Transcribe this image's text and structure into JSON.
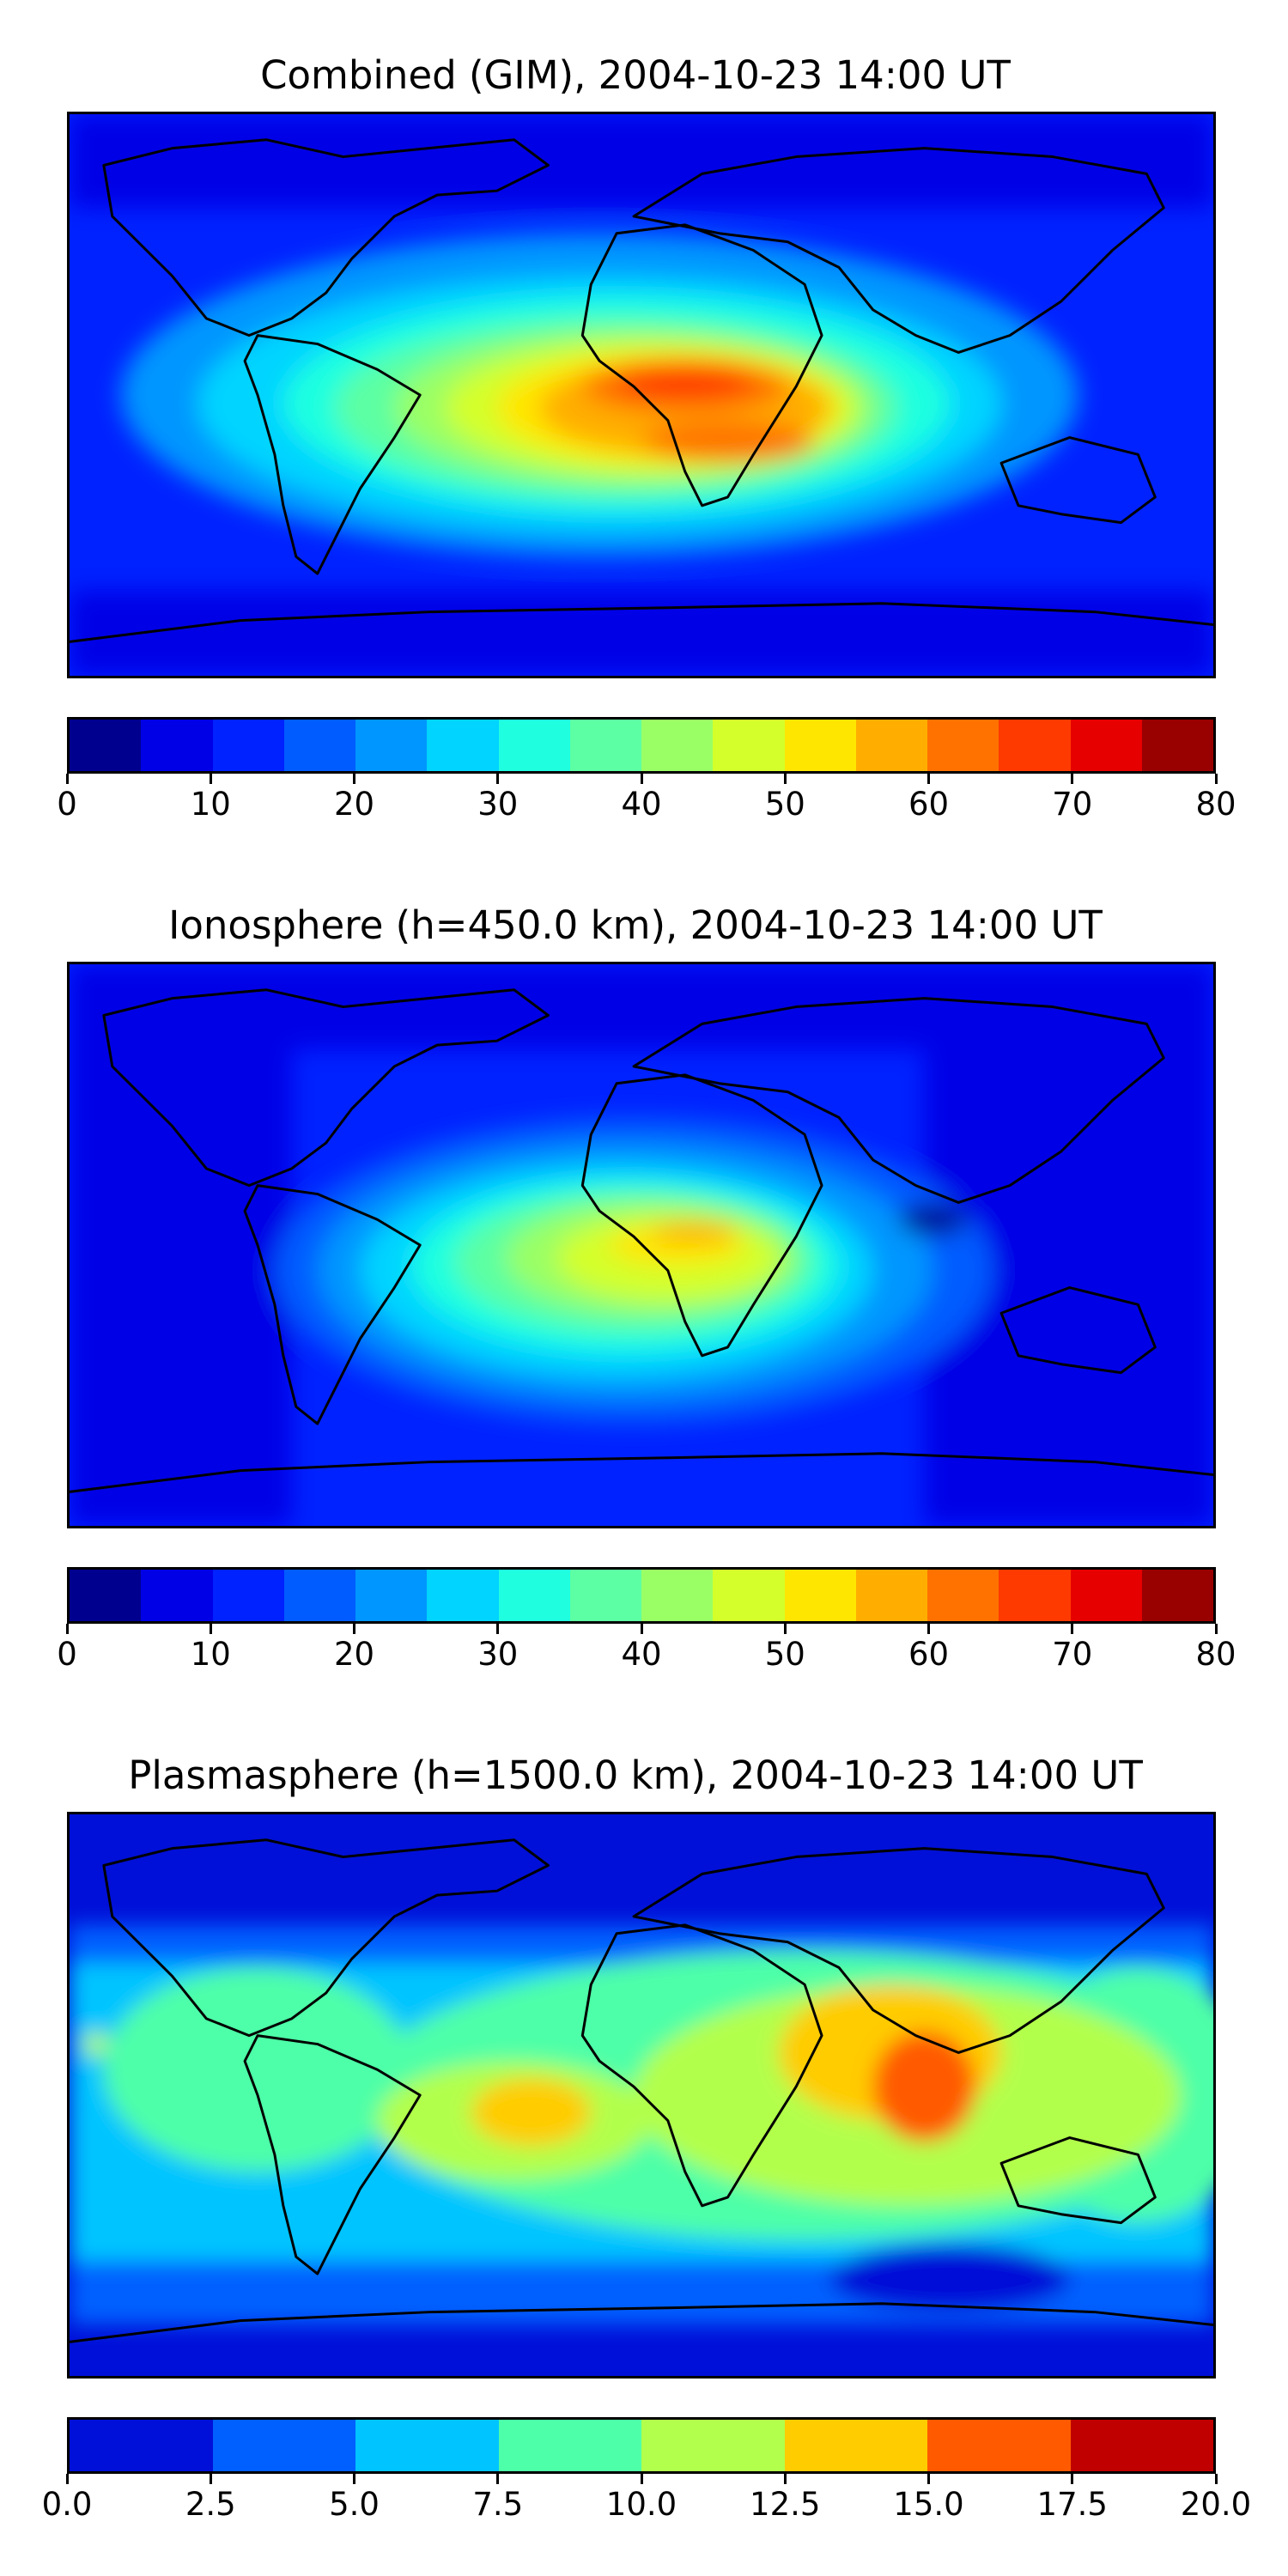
{
  "panels": [
    {
      "title": "Combined (GIM), 2004-10-23 14:00 UT",
      "colorbar": {
        "ticks": [
          "0",
          "10",
          "20",
          "30",
          "40",
          "50",
          "60",
          "70",
          "80"
        ],
        "colors": [
          "#00008f",
          "#0000e6",
          "#0022ff",
          "#005cff",
          "#0096ff",
          "#00d4ff",
          "#1fffe0",
          "#5cffa3",
          "#9aff65",
          "#d4ff2b",
          "#ffe600",
          "#ffae00",
          "#ff7200",
          "#ff3a00",
          "#e60000",
          "#990000"
        ]
      }
    },
    {
      "title": "Ionosphere  (h=450.0 km), 2004-10-23 14:00 UT",
      "colorbar": {
        "ticks": [
          "0",
          "10",
          "20",
          "30",
          "40",
          "50",
          "60",
          "70",
          "80"
        ],
        "colors": [
          "#00008f",
          "#0000e6",
          "#0022ff",
          "#005cff",
          "#0096ff",
          "#00d4ff",
          "#1fffe0",
          "#5cffa3",
          "#9aff65",
          "#d4ff2b",
          "#ffe600",
          "#ffae00",
          "#ff7200",
          "#ff3a00",
          "#e60000",
          "#990000"
        ]
      }
    },
    {
      "title": "Plasmasphere (h=1500.0 km), 2004-10-23 14:00 UT",
      "colorbar": {
        "ticks": [
          "0.0",
          "2.5",
          "5.0",
          "7.5",
          "10.0",
          "12.5",
          "15.0",
          "17.5",
          "20.0"
        ],
        "colors": [
          "#0010d8",
          "#0060ff",
          "#00c4ff",
          "#4dffa8",
          "#b2ff4c",
          "#ffcc00",
          "#ff5a00",
          "#c00000"
        ]
      }
    }
  ]
}
